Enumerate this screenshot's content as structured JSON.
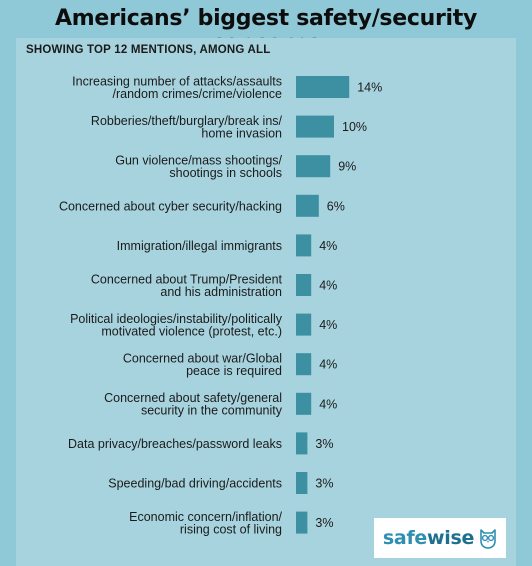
{
  "title": "Americans’ biggest safety/security concerns",
  "subtitle": "SHOWING TOP 12 MENTIONS, AMONG ALL",
  "brand": {
    "part1": "safe",
    "part2": "wise",
    "logo_icon": "owl-icon"
  },
  "colors": {
    "background": "#8fc8d6",
    "panel": "#a7d3de",
    "bar": "#3d8fa2",
    "text": "#1b1b1b"
  },
  "chart_data": {
    "type": "bar",
    "orientation": "horizontal",
    "title": "Americans’ biggest safety/security concerns",
    "subtitle": "SHOWING TOP 12 MENTIONS, AMONG ALL",
    "categories": [
      [
        "Increasing number of attacks/assaults",
        "/random crimes/crime/violence"
      ],
      [
        "Robberies/theft/burglary/break ins/",
        "home invasion"
      ],
      [
        "Gun violence/mass shootings/",
        "shootings in schools"
      ],
      [
        "Concerned about cyber security/hacking"
      ],
      [
        "Immigration/illegal immigrants"
      ],
      [
        "Concerned about Trump/President",
        "and his administration"
      ],
      [
        "Political ideologies/instability/politically",
        "motivated violence (protest, etc.)"
      ],
      [
        "Concerned about war/Global",
        "peace is required"
      ],
      [
        "Concerned about safety/general",
        "security in the community"
      ],
      [
        "Data privacy/breaches/password leaks"
      ],
      [
        "Speeding/bad driving/accidents"
      ],
      [
        "Economic concern/inflation/",
        "rising cost of living"
      ]
    ],
    "values": [
      14,
      10,
      9,
      6,
      4,
      4,
      4,
      4,
      4,
      3,
      3,
      3
    ],
    "value_labels": [
      "14%",
      "10%",
      "9%",
      "6%",
      "4%",
      "4%",
      "4%",
      "4%",
      "4%",
      "3%",
      "3%",
      "3%"
    ],
    "unit": "%"
  }
}
